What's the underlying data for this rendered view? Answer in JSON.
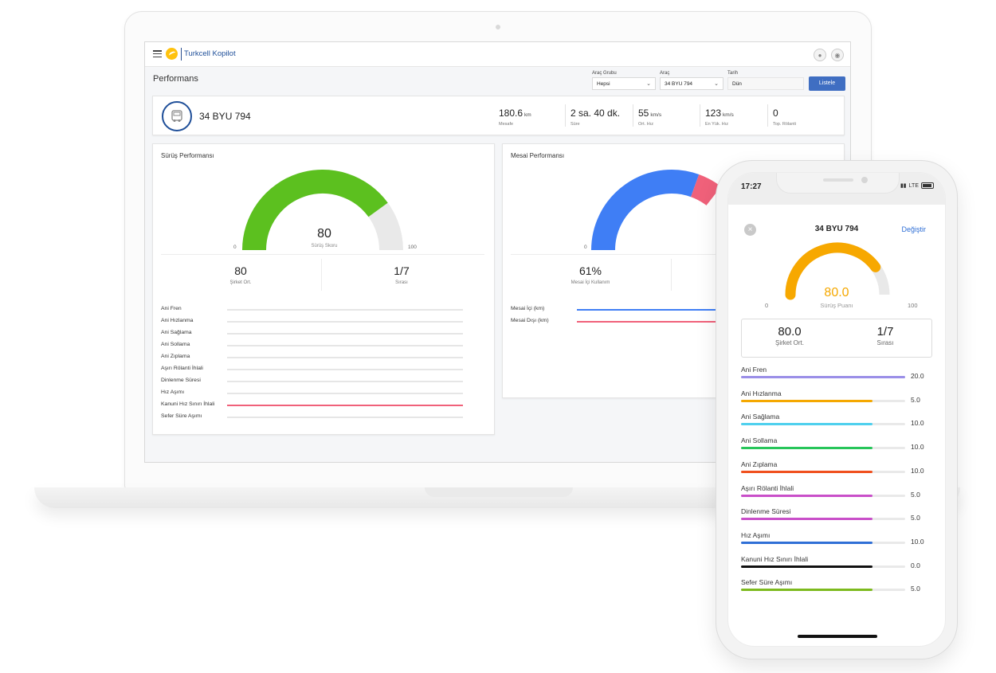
{
  "app": {
    "title": "Turkcell Kopilot"
  },
  "page": {
    "title": "Performans"
  },
  "filters": {
    "group_label": "Araç Grubu",
    "group_value": "Hepsi",
    "vehicle_label": "Araç",
    "vehicle_value": "34 BYU 794",
    "date_label": "Tarih",
    "date_value": "Dün",
    "submit_label": "Listele"
  },
  "vehicle": {
    "plate": "34 BYU 794",
    "stats": [
      {
        "value": "180.6",
        "unit": "km",
        "label": "Mesafe"
      },
      {
        "value": "2 sa. 40 dk.",
        "unit": "",
        "label": "Süre"
      },
      {
        "value": "55",
        "unit": "km/s",
        "label": "Ort. Hız"
      },
      {
        "value": "123",
        "unit": "km/s",
        "label": "En Yük. Hız"
      },
      {
        "value": "0",
        "unit": "",
        "label": "Top. Rölanti"
      }
    ]
  },
  "driving": {
    "title": "Sürüş Performansı",
    "score": "80",
    "score_label": "Sürüş Skoru",
    "score_fraction": 0.8,
    "min": "0",
    "max": "100",
    "company_avg": "80",
    "company_avg_label": "Şirket Ort.",
    "rank": "1/7",
    "rank_label": "Sırası",
    "color": "#5cc01f",
    "metrics": [
      {
        "name": "Ani Fren",
        "fraction": 0,
        "color": "#e6e6e6"
      },
      {
        "name": "Ani Hızlanma",
        "fraction": 0,
        "color": "#e6e6e6"
      },
      {
        "name": "Ani Sağlama",
        "fraction": 0,
        "color": "#e6e6e6"
      },
      {
        "name": "Ani Sollama",
        "fraction": 0,
        "color": "#e6e6e6"
      },
      {
        "name": "Ani Zıplama",
        "fraction": 0,
        "color": "#e6e6e6"
      },
      {
        "name": "Aşırı Rölanti İhlali",
        "fraction": 0,
        "color": "#e6e6e6"
      },
      {
        "name": "Dinlenme Süresi",
        "fraction": 0,
        "color": "#e6e6e6"
      },
      {
        "name": "Hız Aşımı",
        "fraction": 0,
        "color": "#e6e6e6"
      },
      {
        "name": "Kanuni Hız Sınırı İhlali",
        "fraction": 1,
        "color": "#f0617a"
      },
      {
        "name": "Sefer Süre Aşımı",
        "fraction": 0,
        "color": "#e6e6e6"
      }
    ]
  },
  "overtime": {
    "title": "Mesai Performansı",
    "min": "0",
    "blue_fraction": 0.61,
    "red_fraction": 0.1,
    "blue_color": "#3f7ef5",
    "red_color": "#f0617a",
    "usage_value": "61%",
    "usage_label": "Mesai İçi Kullanım",
    "metrics": [
      {
        "name": "Mesai İçi (km)",
        "fraction": 1,
        "color": "#3f7ef5"
      },
      {
        "name": "Mesai Dışı (km)",
        "fraction": 0.6,
        "color": "#f0617a"
      }
    ]
  },
  "phone": {
    "time": "17:27",
    "network": "LTE",
    "plate": "34 BYU 794",
    "change_label": "Değiştir",
    "score": "80.0",
    "score_label": "Sürüş Puanı",
    "score_fraction": 0.8,
    "min": "0",
    "max": "100",
    "company_avg": "80.0",
    "company_avg_label": "Şirket Ort.",
    "rank": "1/7",
    "rank_label": "Sırası",
    "gauge_color": "#f7a800",
    "metrics": [
      {
        "name": "Ani Fren",
        "value": "20.0",
        "fraction": 1.0,
        "color": "#9b8fe8"
      },
      {
        "name": "Ani Hızlanma",
        "value": "5.0",
        "fraction": 0.8,
        "color": "#f5a800"
      },
      {
        "name": "Ani Sağlama",
        "value": "10.0",
        "fraction": 0.8,
        "color": "#4fd0ee"
      },
      {
        "name": "Ani Sollama",
        "value": "10.0",
        "fraction": 0.8,
        "color": "#27c55a"
      },
      {
        "name": "Ani Zıplama",
        "value": "10.0",
        "fraction": 0.8,
        "color": "#f0501e"
      },
      {
        "name": "Aşırı Rölanti İhlali",
        "value": "5.0",
        "fraction": 0.8,
        "color": "#c94fc9"
      },
      {
        "name": "Dinlenme Süresi",
        "value": "5.0",
        "fraction": 0.8,
        "color": "#c94fc9"
      },
      {
        "name": "Hız Aşımı",
        "value": "10.0",
        "fraction": 0.8,
        "color": "#2f6fd6"
      },
      {
        "name": "Kanuni Hız Sınırı İhlali",
        "value": "0.0",
        "fraction": 0.8,
        "color": "#111111"
      },
      {
        "name": "Sefer Süre Aşımı",
        "value": "5.0",
        "fraction": 0.8,
        "color": "#7dba1e"
      }
    ]
  }
}
